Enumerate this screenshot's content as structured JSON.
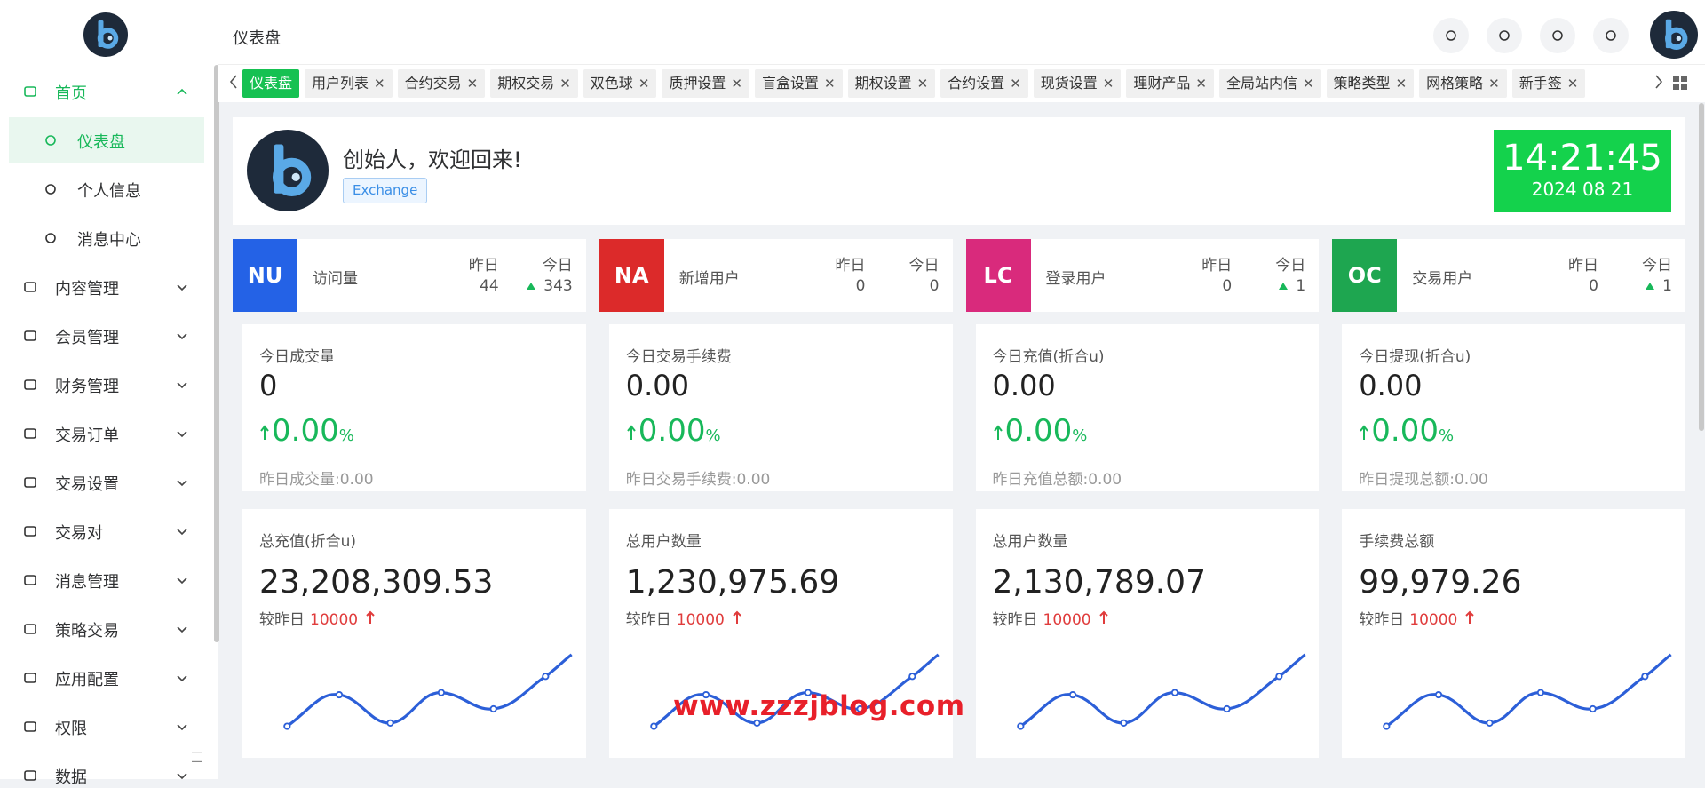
{
  "header": {
    "title": "仪表盘"
  },
  "sidebar": {
    "items": [
      {
        "label": "首页",
        "children": [
          "仪表盘",
          "个人信息",
          "消息中心"
        ]
      },
      {
        "label": "内容管理"
      },
      {
        "label": "会员管理"
      },
      {
        "label": "财务管理"
      },
      {
        "label": "交易订单"
      },
      {
        "label": "交易设置"
      },
      {
        "label": "交易对"
      },
      {
        "label": "消息管理"
      },
      {
        "label": "策略交易"
      },
      {
        "label": "应用配置"
      },
      {
        "label": "权限"
      },
      {
        "label": "数据"
      }
    ]
  },
  "tabs": [
    "仪表盘",
    "用户列表",
    "合约交易",
    "期权交易",
    "双色球",
    "质押设置",
    "盲盒设置",
    "期权设置",
    "合约设置",
    "现货设置",
    "理财产品",
    "全局站内信",
    "策略类型",
    "网格策略",
    "新手签"
  ],
  "welcome": {
    "greeting": "创始人，欢迎回来!",
    "badge": "Exchange",
    "time": "14:21:45",
    "date": "2024 08 21"
  },
  "stats": [
    {
      "code": "NU",
      "color": "#2462e6",
      "label": "访问量",
      "yesterday_label": "昨日",
      "yesterday": 44,
      "today_label": "今日",
      "today": 343,
      "today_up": true
    },
    {
      "code": "NA",
      "color": "#dc2a2a",
      "label": "新增用户",
      "yesterday_label": "昨日",
      "yesterday": 0,
      "today_label": "今日",
      "today": 0,
      "today_up": false
    },
    {
      "code": "LC",
      "color": "#d92a7c",
      "label": "登录用户",
      "yesterday_label": "昨日",
      "yesterday": 0,
      "today_label": "今日",
      "today": 1,
      "today_up": true
    },
    {
      "code": "OC",
      "color": "#1ea650",
      "label": "交易用户",
      "yesterday_label": "昨日",
      "yesterday": 0,
      "today_label": "今日",
      "today": 1,
      "today_up": true
    }
  ],
  "metrics": [
    {
      "title": "今日成交量",
      "value": "0",
      "change": "0.00",
      "change_unit": "%",
      "footer": "昨日成交量:0.00"
    },
    {
      "title": "今日交易手续费",
      "value": "0.00",
      "change": "0.00",
      "change_unit": "%",
      "footer": "昨日交易手续费:0.00"
    },
    {
      "title": "今日充值(折合u)",
      "value": "0.00",
      "change": "0.00",
      "change_unit": "%",
      "footer": "昨日充值总额:0.00"
    },
    {
      "title": "今日提现(折合u)",
      "value": "0.00",
      "change": "0.00",
      "change_unit": "%",
      "footer": "昨日提现总额:0.00"
    }
  ],
  "totals": [
    {
      "title": "总充值(折合u)",
      "value": "23,208,309.53",
      "compare_label": "较昨日",
      "compare": 10000
    },
    {
      "title": "总用户数量",
      "value": "1,230,975.69",
      "compare_label": "较昨日",
      "compare": 10000
    },
    {
      "title": "总用户数量",
      "value": "2,130,789.07",
      "compare_label": "较昨日",
      "compare": 10000
    },
    {
      "title": "手续费总额",
      "value": "99,979.26",
      "compare_label": "较昨日",
      "compare": 10000
    }
  ],
  "watermark": "www.zzzjblog.com"
}
